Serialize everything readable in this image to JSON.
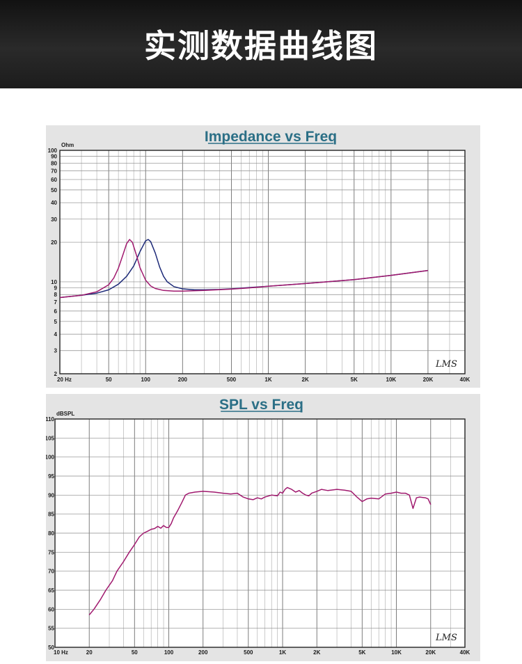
{
  "banner": {
    "title": "实测数据曲线图"
  },
  "logo_text": "LMS",
  "colors": {
    "title": "#2b6f86",
    "magenta": "#a0196e",
    "navy": "#1d2a78",
    "grid": "#8a8a8a",
    "panel": "#e4e4e4"
  },
  "chart_data": [
    {
      "type": "line",
      "title": "Impedance vs Freq",
      "ylabel": "Ohm",
      "x_scale": "log",
      "y_scale": "log",
      "xlim": [
        20,
        40000
      ],
      "ylim": [
        2,
        100
      ],
      "x_ticks": [
        {
          "v": 20,
          "label": "20 Hz"
        },
        {
          "v": 50,
          "label": "50"
        },
        {
          "v": 100,
          "label": "100"
        },
        {
          "v": 200,
          "label": "200"
        },
        {
          "v": 500,
          "label": "500"
        },
        {
          "v": 1000,
          "label": "1K"
        },
        {
          "v": 2000,
          "label": "2K"
        },
        {
          "v": 5000,
          "label": "5K"
        },
        {
          "v": 10000,
          "label": "10K"
        },
        {
          "v": 20000,
          "label": "20K"
        },
        {
          "v": 40000,
          "label": "40K"
        }
      ],
      "y_ticks": [
        {
          "v": 100,
          "label": "100"
        },
        {
          "v": 90,
          "label": "90"
        },
        {
          "v": 80,
          "label": "80"
        },
        {
          "v": 70,
          "label": "70"
        },
        {
          "v": 60,
          "label": "60"
        },
        {
          "v": 50,
          "label": "50"
        },
        {
          "v": 40,
          "label": "40"
        },
        {
          "v": 30,
          "label": "30"
        },
        {
          "v": 20,
          "label": "20"
        },
        {
          "v": 10,
          "label": "10"
        },
        {
          "v": 9,
          "label": "9"
        },
        {
          "v": 8,
          "label": "8"
        },
        {
          "v": 7,
          "label": "7"
        },
        {
          "v": 6,
          "label": "6"
        },
        {
          "v": 5,
          "label": "5"
        },
        {
          "v": 4,
          "label": "4"
        },
        {
          "v": 3,
          "label": "3"
        },
        {
          "v": 2,
          "label": "2"
        }
      ],
      "series": [
        {
          "color": "#1d2a78",
          "points": [
            [
              20,
              7.6
            ],
            [
              30,
              7.9
            ],
            [
              40,
              8.2
            ],
            [
              50,
              8.7
            ],
            [
              60,
              9.6
            ],
            [
              70,
              11
            ],
            [
              80,
              13.2
            ],
            [
              90,
              17
            ],
            [
              100,
              20.5
            ],
            [
              105,
              21
            ],
            [
              110,
              20.2
            ],
            [
              120,
              16.5
            ],
            [
              130,
              13
            ],
            [
              140,
              11
            ],
            [
              150,
              10
            ],
            [
              170,
              9.2
            ],
            [
              200,
              8.85
            ],
            [
              250,
              8.7
            ],
            [
              300,
              8.7
            ],
            [
              400,
              8.75
            ],
            [
              500,
              8.85
            ],
            [
              700,
              9.05
            ],
            [
              1000,
              9.25
            ],
            [
              2000,
              9.7
            ],
            [
              5000,
              10.4
            ],
            [
              10000,
              11.2
            ],
            [
              20000,
              12.2
            ]
          ]
        },
        {
          "color": "#a0196e",
          "points": [
            [
              20,
              7.6
            ],
            [
              30,
              7.9
            ],
            [
              40,
              8.4
            ],
            [
              50,
              9.5
            ],
            [
              55,
              10.7
            ],
            [
              60,
              12.7
            ],
            [
              65,
              15.8
            ],
            [
              70,
              19.5
            ],
            [
              74,
              21
            ],
            [
              78,
              20
            ],
            [
              85,
              15.5
            ],
            [
              90,
              12.8
            ],
            [
              100,
              10.3
            ],
            [
              110,
              9.3
            ],
            [
              120,
              8.9
            ],
            [
              140,
              8.6
            ],
            [
              170,
              8.5
            ],
            [
              200,
              8.5
            ],
            [
              300,
              8.6
            ],
            [
              500,
              8.8
            ],
            [
              700,
              9
            ],
            [
              1000,
              9.25
            ],
            [
              2000,
              9.7
            ],
            [
              5000,
              10.4
            ],
            [
              10000,
              11.2
            ],
            [
              20000,
              12.2
            ]
          ]
        }
      ]
    },
    {
      "type": "line",
      "title": "SPL vs Freq",
      "ylabel": "dBSPL",
      "x_scale": "log",
      "xlim": [
        10,
        40000
      ],
      "ylim": [
        50,
        110
      ],
      "x_ticks": [
        {
          "v": 10,
          "label": "10 Hz"
        },
        {
          "v": 20,
          "label": "20"
        },
        {
          "v": 50,
          "label": "50"
        },
        {
          "v": 100,
          "label": "100"
        },
        {
          "v": 200,
          "label": "200"
        },
        {
          "v": 500,
          "label": "500"
        },
        {
          "v": 1000,
          "label": "1K"
        },
        {
          "v": 2000,
          "label": "2K"
        },
        {
          "v": 5000,
          "label": "5K"
        },
        {
          "v": 10000,
          "label": "10K"
        },
        {
          "v": 20000,
          "label": "20K"
        },
        {
          "v": 40000,
          "label": "40K"
        }
      ],
      "y_ticks": [
        {
          "v": 110,
          "label": "110"
        },
        {
          "v": 105,
          "label": "105"
        },
        {
          "v": 100,
          "label": "100"
        },
        {
          "v": 95,
          "label": "95"
        },
        {
          "v": 90,
          "label": "90"
        },
        {
          "v": 85,
          "label": "85"
        },
        {
          "v": 80,
          "label": "80"
        },
        {
          "v": 75,
          "label": "75"
        },
        {
          "v": 70,
          "label": "70"
        },
        {
          "v": 65,
          "label": "65"
        },
        {
          "v": 60,
          "label": "60"
        },
        {
          "v": 55,
          "label": "55"
        },
        {
          "v": 50,
          "label": "50"
        }
      ],
      "series": [
        {
          "color": "#a0196e",
          "points": [
            [
              20,
              58.5
            ],
            [
              22,
              60
            ],
            [
              25,
              62.5
            ],
            [
              28,
              65
            ],
            [
              32,
              67.5
            ],
            [
              35,
              70
            ],
            [
              40,
              72.5
            ],
            [
              45,
              75
            ],
            [
              50,
              77
            ],
            [
              55,
              79
            ],
            [
              60,
              80
            ],
            [
              65,
              80.5
            ],
            [
              70,
              81
            ],
            [
              75,
              81.2
            ],
            [
              80,
              81.8
            ],
            [
              85,
              81.3
            ],
            [
              90,
              82
            ],
            [
              95,
              81.5
            ],
            [
              100,
              81.5
            ],
            [
              105,
              82.5
            ],
            [
              110,
              84
            ],
            [
              120,
              86
            ],
            [
              130,
              88
            ],
            [
              140,
              90
            ],
            [
              150,
              90.5
            ],
            [
              170,
              90.8
            ],
            [
              200,
              91
            ],
            [
              250,
              90.8
            ],
            [
              300,
              90.5
            ],
            [
              350,
              90.3
            ],
            [
              400,
              90.5
            ],
            [
              450,
              89.5
            ],
            [
              500,
              89
            ],
            [
              550,
              88.8
            ],
            [
              600,
              89.3
            ],
            [
              650,
              89
            ],
            [
              700,
              89.5
            ],
            [
              800,
              90
            ],
            [
              900,
              89.8
            ],
            [
              950,
              90.8
            ],
            [
              1000,
              90.5
            ],
            [
              1050,
              91.5
            ],
            [
              1100,
              92
            ],
            [
              1200,
              91.5
            ],
            [
              1300,
              90.8
            ],
            [
              1400,
              91.2
            ],
            [
              1500,
              90.5
            ],
            [
              1600,
              90
            ],
            [
              1700,
              89.8
            ],
            [
              1800,
              90.5
            ],
            [
              2000,
              91
            ],
            [
              2200,
              91.5
            ],
            [
              2500,
              91.2
            ],
            [
              3000,
              91.5
            ],
            [
              3500,
              91.3
            ],
            [
              4000,
              91
            ],
            [
              4500,
              89.5
            ],
            [
              5000,
              88.3
            ],
            [
              5500,
              89
            ],
            [
              6000,
              89.2
            ],
            [
              7000,
              89
            ],
            [
              8000,
              90.3
            ],
            [
              9000,
              90.5
            ],
            [
              10000,
              90.8
            ],
            [
              11000,
              90.5
            ],
            [
              12000,
              90.5
            ],
            [
              13000,
              90
            ],
            [
              14000,
              86.5
            ],
            [
              15000,
              89.3
            ],
            [
              16000,
              89.5
            ],
            [
              18000,
              89.3
            ],
            [
              19000,
              89
            ],
            [
              20000,
              87.5
            ]
          ]
        }
      ]
    }
  ]
}
